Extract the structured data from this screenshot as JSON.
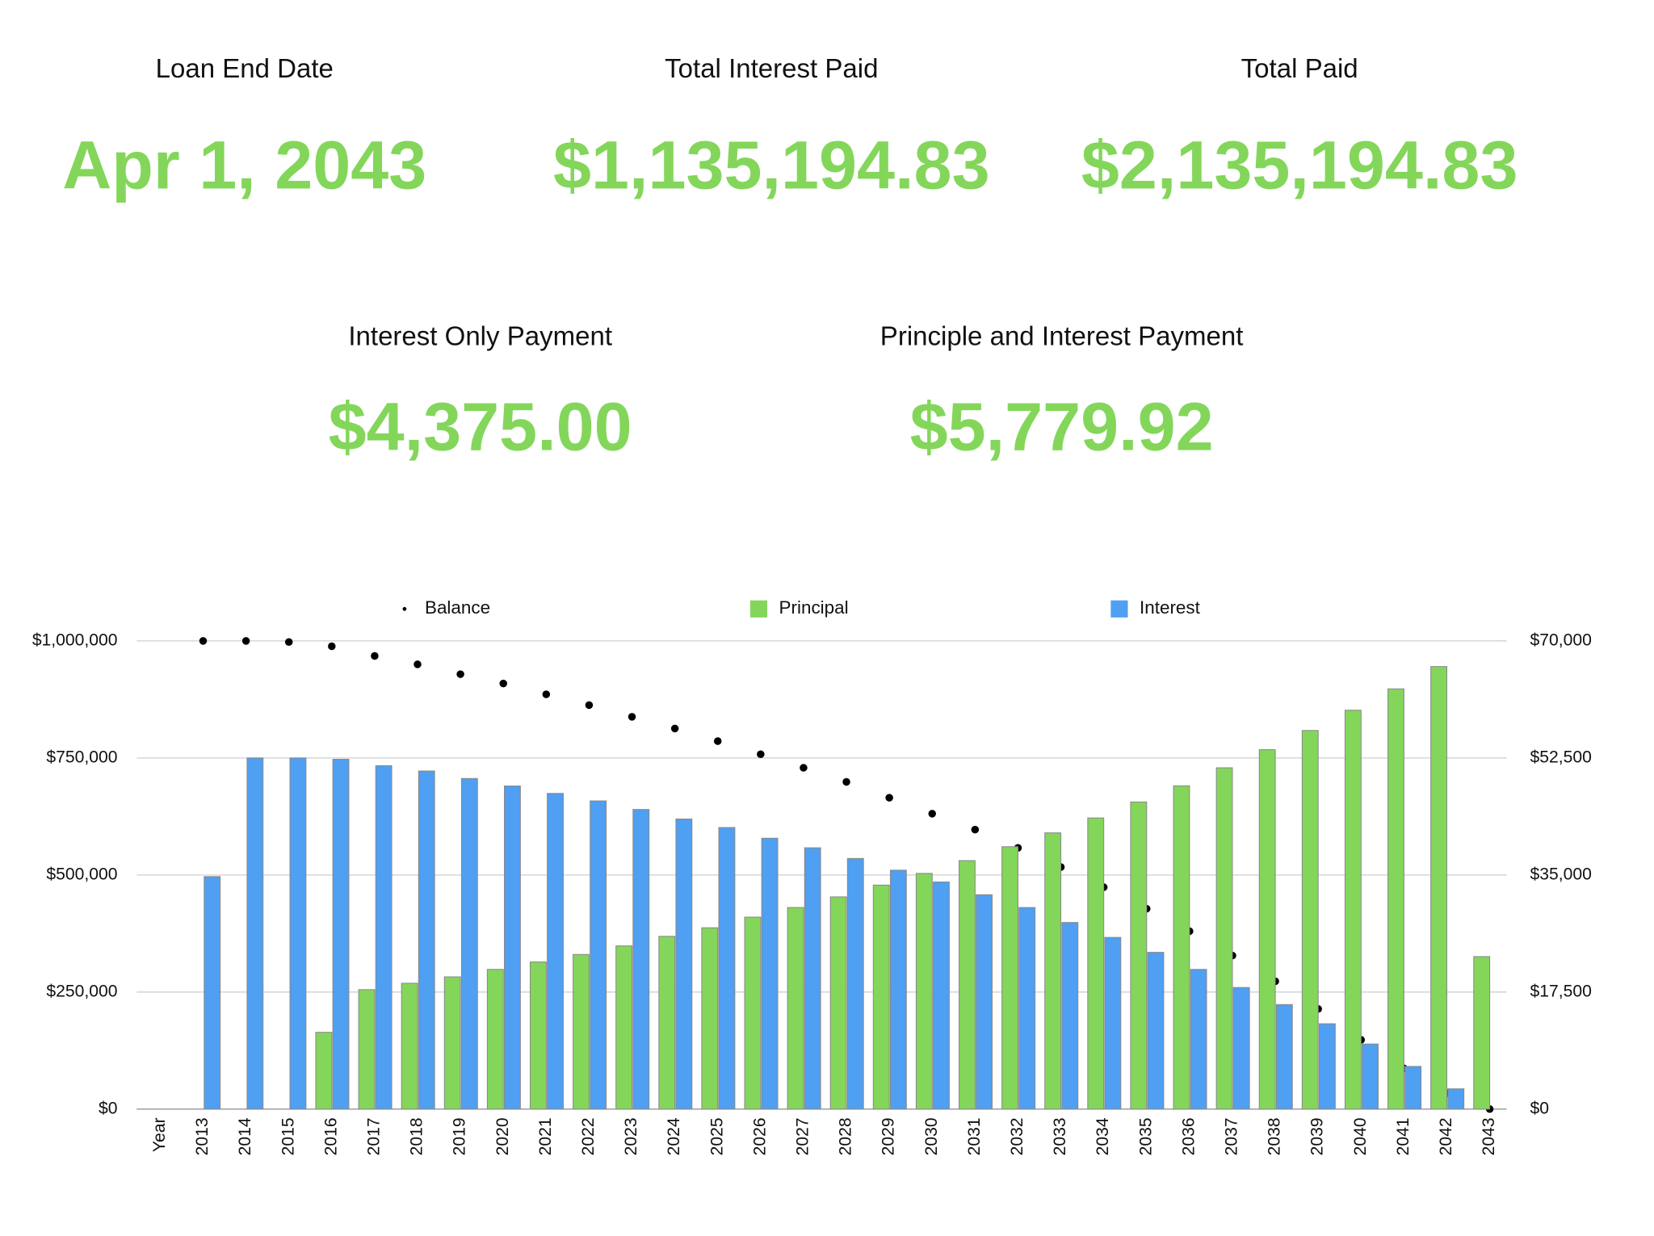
{
  "stats": [
    {
      "label": "Loan End Date",
      "value": "Apr 1, 2043"
    },
    {
      "label": "Total Interest Paid",
      "value": "$1,135,194.83"
    },
    {
      "label": "Total Paid",
      "value": "$2,135,194.83"
    },
    {
      "label": "Interest Only Payment",
      "value": "$4,375.00"
    },
    {
      "label": "Principle and Interest Payment",
      "value": "$5,779.92"
    }
  ],
  "chart_data": {
    "type": "bar",
    "categories": [
      "Year",
      "2013",
      "2014",
      "2015",
      "2016",
      "2017",
      "2018",
      "2019",
      "2020",
      "2021",
      "2022",
      "2023",
      "2024",
      "2025",
      "2026",
      "2027",
      "2028",
      "2029",
      "2030",
      "2031",
      "2032",
      "2033",
      "2034",
      "2035",
      "2036",
      "2037",
      "2038",
      "2039",
      "2040",
      "2041",
      "2042",
      "2043"
    ],
    "series": [
      {
        "name": "Balance",
        "type": "scatter",
        "color": "#000000",
        "axis": "y",
        "values": [
          null,
          1000000,
          1000000,
          997700,
          988600,
          968000,
          950000,
          929000,
          909000,
          886000,
          863000,
          838000,
          813000,
          786000,
          758000,
          729000,
          699000,
          665000,
          631000,
          597000,
          558000,
          517000,
          474000,
          428000,
          380000,
          328000,
          273000,
          214000,
          148000,
          87000,
          34000,
          0
        ]
      },
      {
        "name": "Principal",
        "type": "bar",
        "color": "#83d65a",
        "axis": "y2",
        "values": [
          null,
          null,
          null,
          null,
          11480,
          17860,
          18815,
          19770,
          20890,
          22000,
          23120,
          24400,
          25830,
          27110,
          28700,
          30140,
          31730,
          33490,
          35240,
          37150,
          39230,
          41300,
          43530,
          45920,
          48320,
          51030,
          53740,
          56610,
          59640,
          62830,
          66170,
          22800
        ]
      },
      {
        "name": "Interest",
        "type": "bar",
        "color": "#4f9ff2",
        "axis": "y2",
        "values": [
          null,
          34760,
          52500,
          52500,
          52300,
          51340,
          50550,
          49430,
          48310,
          47200,
          46080,
          44800,
          43370,
          42100,
          40500,
          39070,
          37470,
          35720,
          33960,
          32050,
          30140,
          27900,
          25670,
          23440,
          20890,
          18180,
          15630,
          12760,
          9730,
          6380,
          3030,
          null
        ]
      }
    ],
    "ylim": [
      0,
      1000000
    ],
    "yticks": [
      {
        "value": 0,
        "label": "$0"
      },
      {
        "value": 250000,
        "label": "$250,000"
      },
      {
        "value": 500000,
        "label": "$500,000"
      },
      {
        "value": 750000,
        "label": "$750,000"
      },
      {
        "value": 1000000,
        "label": "$1,000,000"
      }
    ],
    "y2lim": [
      0,
      70000
    ],
    "y2ticks": [
      {
        "value": 0,
        "label": "$0"
      },
      {
        "value": 17500,
        "label": "$17,500"
      },
      {
        "value": 35000,
        "label": "$35,000"
      },
      {
        "value": 52500,
        "label": "$52,500"
      },
      {
        "value": 70000,
        "label": "$70,000"
      }
    ],
    "grid": true,
    "legend": "top"
  }
}
